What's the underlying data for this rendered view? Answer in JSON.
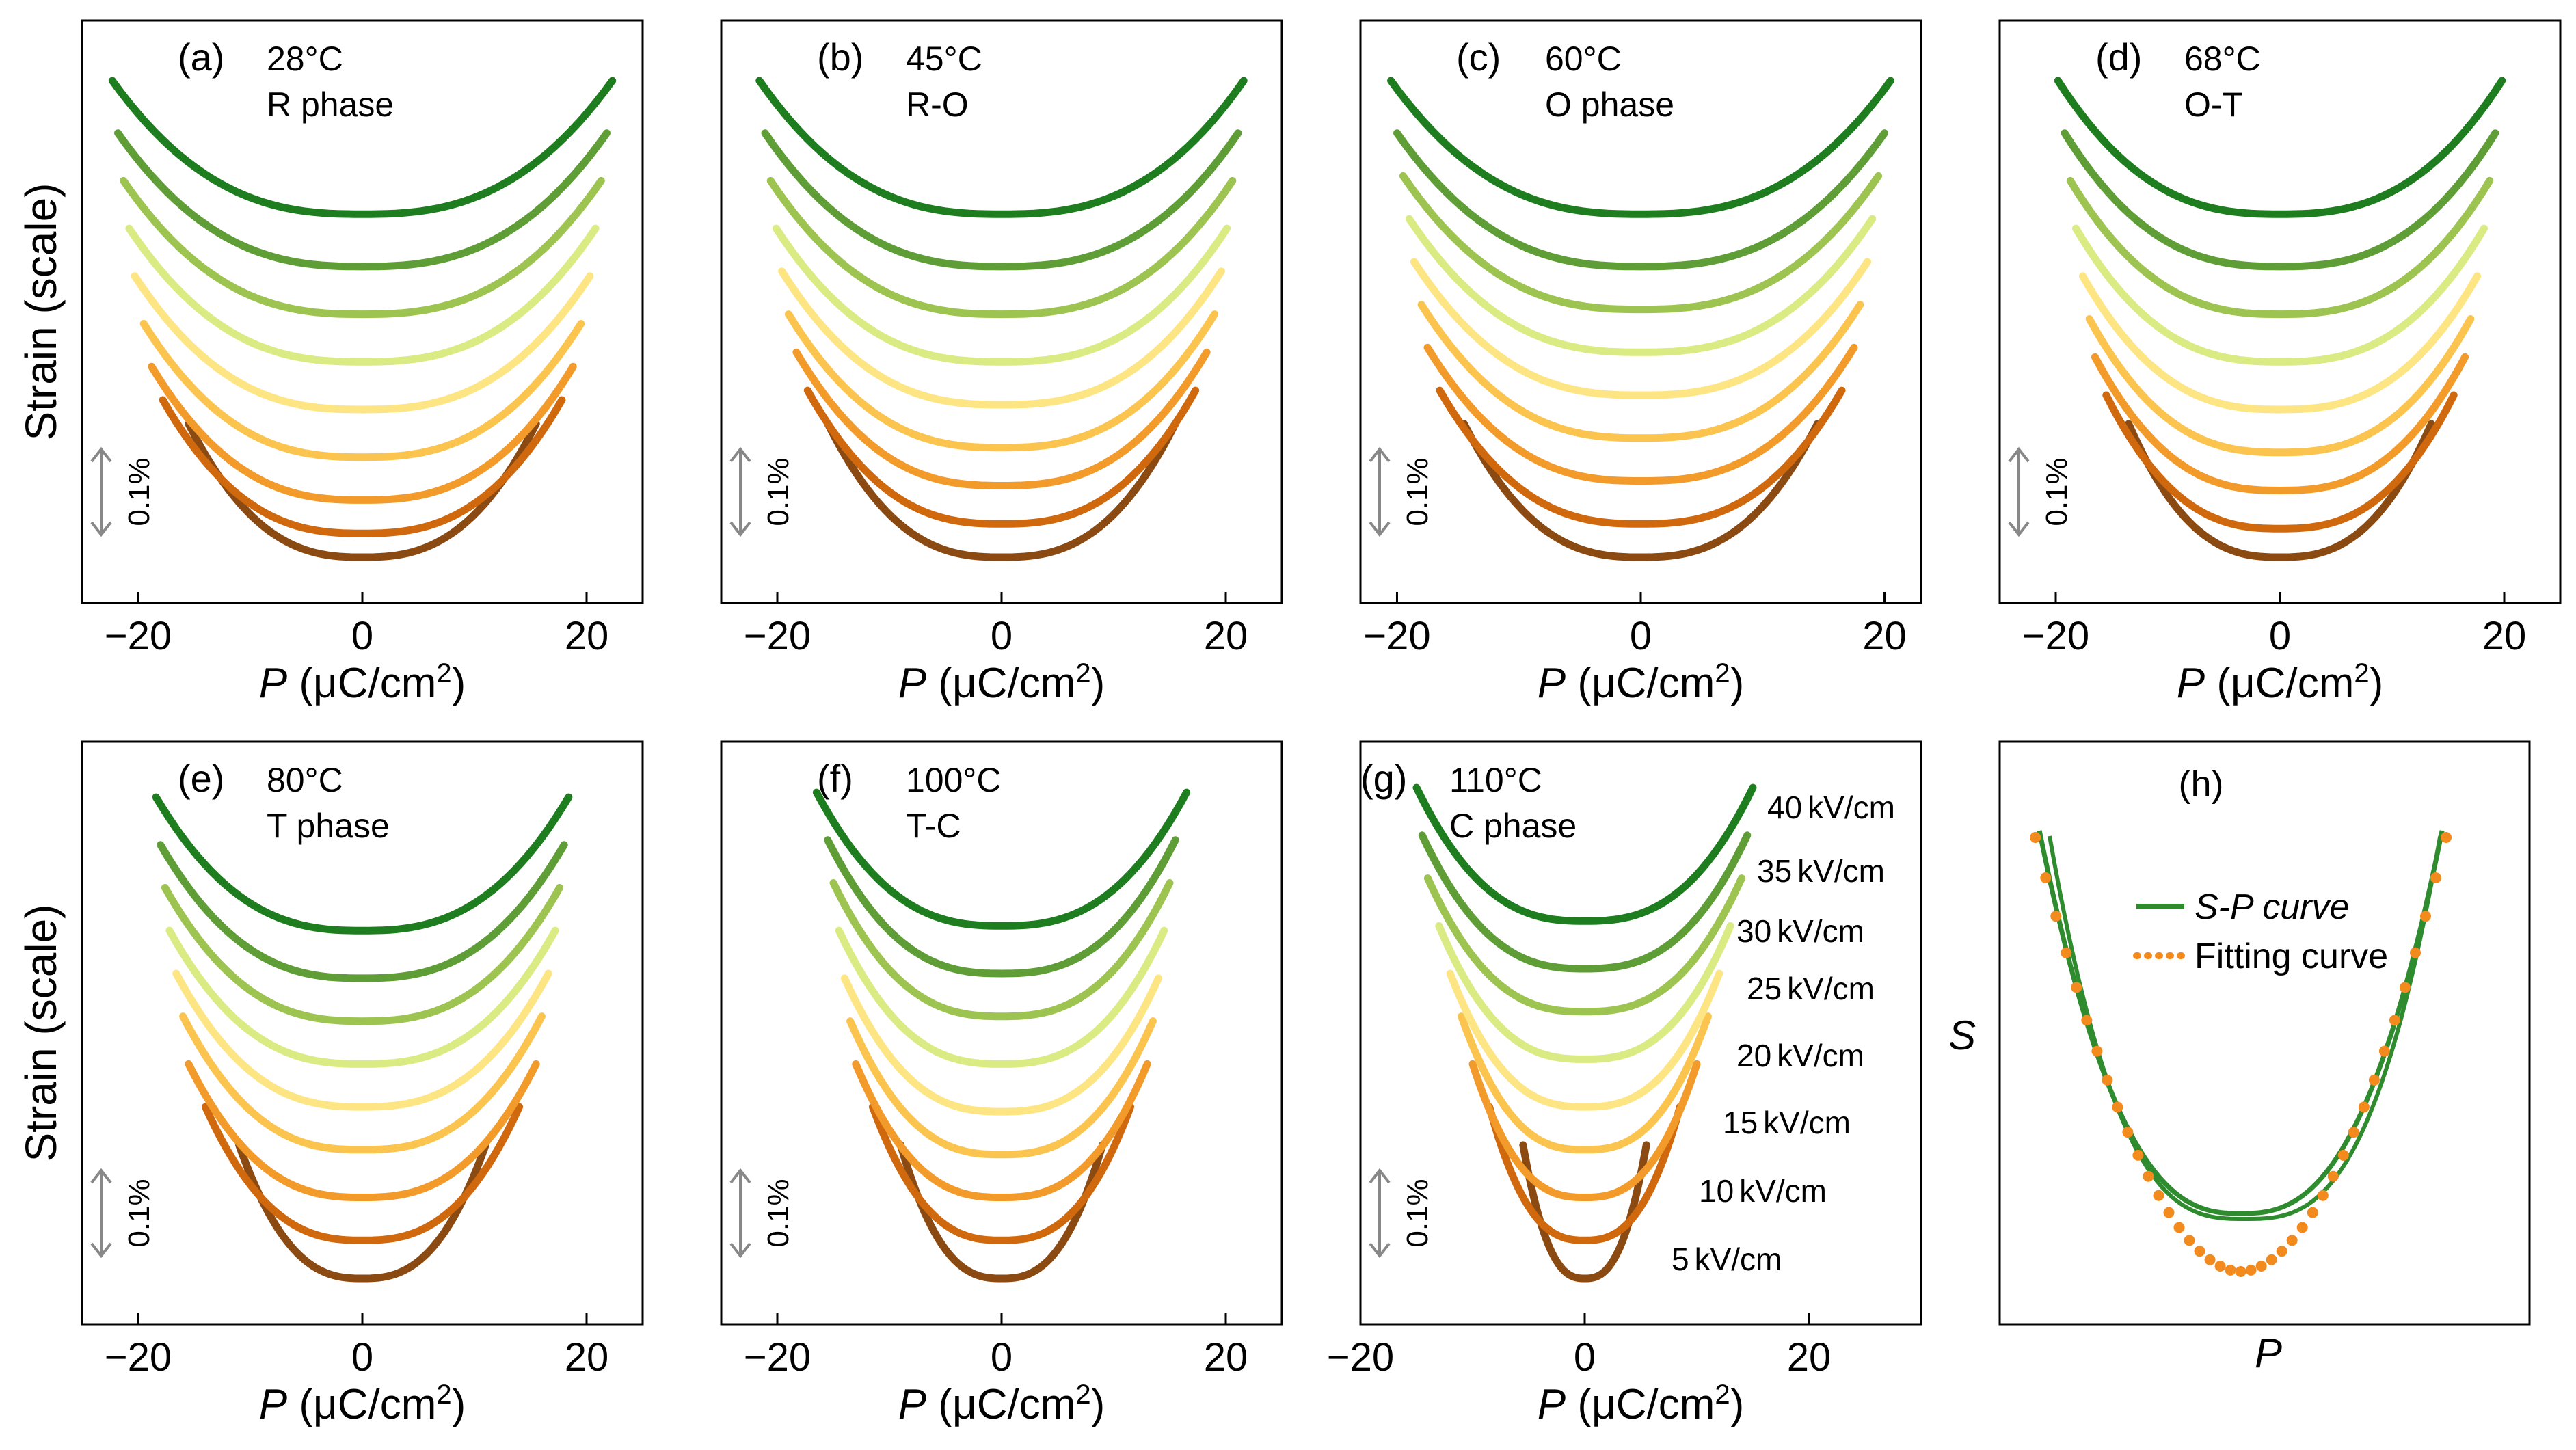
{
  "figure": {
    "ylabel": "Strain (scale)",
    "scalebar_label": "0.1%",
    "xlabel_var": "P",
    "xlabel_unit": " (μC/cm",
    "xlabel_sup": "2",
    "xlabel_close": ")"
  },
  "colors": [
    "#8a4a12",
    "#d0680e",
    "#f29a2a",
    "#fbc44f",
    "#fde584",
    "#d9eb82",
    "#9dc450",
    "#5f9d36",
    "#1e7d1e"
  ],
  "chart_data": [
    {
      "id": "a",
      "type": "line",
      "panel_label": "(a)",
      "temp": "28°C",
      "phase": "R phase",
      "xlim": [
        -25,
        25
      ],
      "xticks": [
        -20,
        0,
        20
      ],
      "half_width": [
        15.5,
        17.8,
        18.8,
        19.5,
        20.3,
        20.8,
        21.3,
        21.8,
        22.3
      ],
      "min_level": [
        0.01,
        0.06,
        0.13,
        0.22,
        0.32,
        0.42,
        0.52,
        0.62,
        0.73
      ]
    },
    {
      "id": "b",
      "type": "line",
      "panel_label": "(b)",
      "temp": "45°C",
      "phase": "R-O",
      "xlim": [
        -25,
        25
      ],
      "xticks": [
        -20,
        0,
        20
      ],
      "half_width": [
        15.5,
        17.3,
        18.3,
        19.0,
        19.6,
        20.1,
        20.6,
        21.1,
        21.6
      ],
      "min_level": [
        0.01,
        0.08,
        0.16,
        0.24,
        0.33,
        0.42,
        0.52,
        0.62,
        0.73
      ]
    },
    {
      "id": "c",
      "type": "line",
      "panel_label": "(c)",
      "temp": "60°C",
      "phase": "O phase",
      "xlim": [
        -23,
        23
      ],
      "xticks": [
        -20,
        0,
        20
      ],
      "half_width": [
        14.5,
        16.5,
        17.5,
        18.0,
        18.6,
        19.0,
        19.5,
        20.0,
        20.5
      ],
      "min_level": [
        0.01,
        0.08,
        0.17,
        0.26,
        0.35,
        0.44,
        0.53,
        0.62,
        0.73
      ]
    },
    {
      "id": "d",
      "type": "line",
      "panel_label": "(d)",
      "temp": "68°C",
      "phase": "O-T",
      "xlim": [
        -25,
        25
      ],
      "xticks": [
        -20,
        0,
        20
      ],
      "half_width": [
        13.5,
        15.5,
        16.5,
        17.0,
        17.6,
        18.2,
        18.7,
        19.2,
        19.8
      ],
      "min_level": [
        0.01,
        0.07,
        0.15,
        0.23,
        0.32,
        0.42,
        0.52,
        0.62,
        0.73
      ]
    },
    {
      "id": "e",
      "type": "line",
      "panel_label": "(e)",
      "temp": "80°C",
      "phase": "T phase",
      "xlim": [
        -25,
        25
      ],
      "xticks": [
        -20,
        0,
        20
      ],
      "half_width": [
        11.0,
        14.0,
        15.5,
        16.0,
        16.6,
        17.2,
        17.6,
        18.0,
        18.4
      ],
      "min_level": [
        0.01,
        0.09,
        0.18,
        0.28,
        0.37,
        0.46,
        0.55,
        0.64,
        0.74
      ]
    },
    {
      "id": "f",
      "type": "line",
      "panel_label": "(f)",
      "temp": "100°C",
      "phase": "T-C",
      "xlim": [
        -25,
        25
      ],
      "xticks": [
        -20,
        0,
        20
      ],
      "half_width": [
        9.0,
        11.5,
        13.0,
        13.5,
        14.0,
        14.5,
        15.0,
        15.5,
        16.5
      ],
      "min_level": [
        0.01,
        0.09,
        0.18,
        0.27,
        0.36,
        0.46,
        0.56,
        0.65,
        0.75
      ]
    },
    {
      "id": "g",
      "type": "line",
      "panel_label": "(g)",
      "temp": "110°C",
      "phase": "C phase",
      "xlim": [
        -20,
        30
      ],
      "xticks": [
        -20,
        0,
        20
      ],
      "half_width": [
        5.5,
        8.5,
        10.0,
        11.0,
        12.0,
        13.0,
        14.0,
        14.5,
        15.0
      ],
      "min_level": [
        0.01,
        0.09,
        0.18,
        0.28,
        0.37,
        0.47,
        0.57,
        0.66,
        0.76
      ],
      "field_labels": [
        {
          "num": "5",
          "unit": "kV/cm"
        },
        {
          "num": "10",
          "unit": "kV/cm"
        },
        {
          "num": "15",
          "unit": "kV/cm"
        },
        {
          "num": "20",
          "unit": "kV/cm"
        },
        {
          "num": "25",
          "unit": "kV/cm"
        },
        {
          "num": "30",
          "unit": "kV/cm"
        },
        {
          "num": "35",
          "unit": "kV/cm"
        },
        {
          "num": "40",
          "unit": "kV/cm"
        }
      ]
    },
    {
      "id": "h",
      "type": "line",
      "panel_label": "(h)",
      "xlabel": "P",
      "ylabel": "S",
      "legend": [
        {
          "name": "S-P curve",
          "color": "#2e8b2e",
          "style": "solid"
        },
        {
          "name": "Fitting curve",
          "color": "#f28a1e",
          "style": "dotted"
        }
      ]
    }
  ]
}
